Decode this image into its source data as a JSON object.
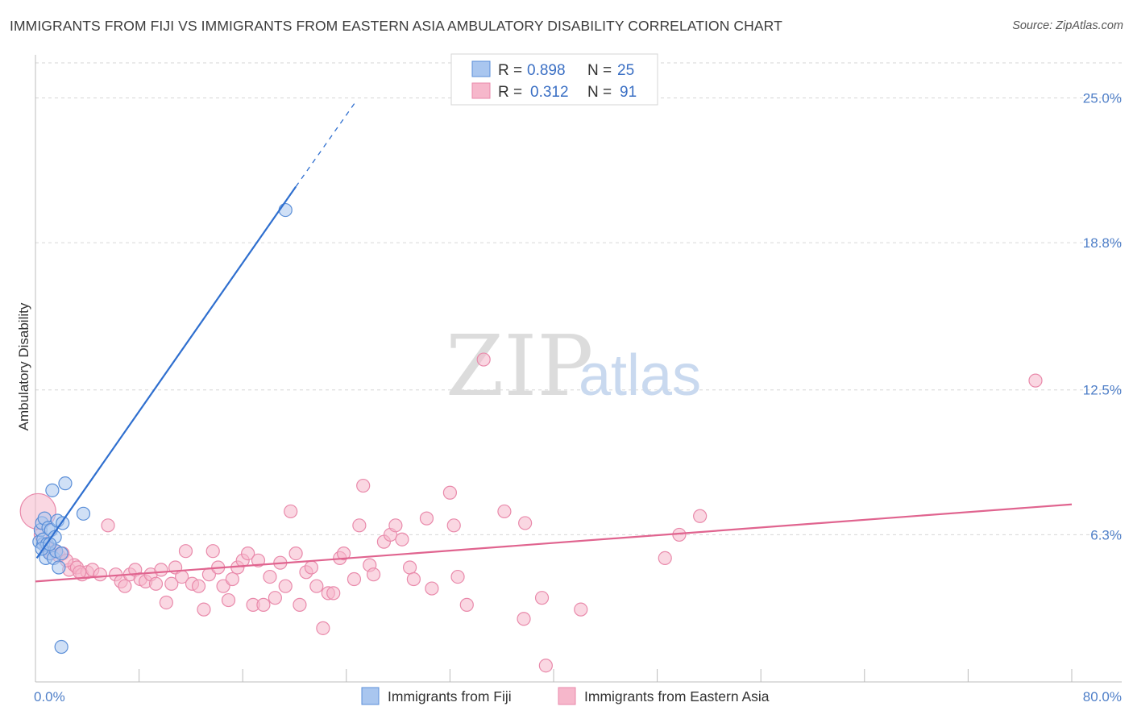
{
  "header": {
    "title": "IMMIGRANTS FROM FIJI VS IMMIGRANTS FROM EASTERN ASIA AMBULATORY DISABILITY CORRELATION CHART",
    "source": "Source: ZipAtlas.com"
  },
  "watermark": {
    "zip": "ZIP",
    "atlas": "atlas"
  },
  "legend": {
    "r_label": "R =",
    "n_label": "N =",
    "rows": [
      {
        "r": "0.898",
        "n": "25"
      },
      {
        "r": "0.312",
        "n": "91"
      }
    ]
  },
  "colors": {
    "fiji_fill": "#a9c6ef",
    "fiji_stroke": "#5b8fd8",
    "fiji_line": "#2f6fcf",
    "asia_fill": "#f6b7cb",
    "asia_stroke": "#e98aab",
    "asia_line": "#e0648f",
    "grid": "#d6d6d6",
    "tick_text": "#4f7fc8"
  },
  "chart_data": {
    "type": "scatter",
    "title": "IMMIGRANTS FROM FIJI VS IMMIGRANTS FROM EASTERN ASIA AMBULATORY DISABILITY CORRELATION CHART",
    "xlabel": "",
    "ylabel": "Ambulatory Disability",
    "xlim": [
      0,
      80
    ],
    "ylim": [
      0,
      26.5
    ],
    "x_tick_labels": [
      "0.0%",
      "80.0%"
    ],
    "y_ticks": [
      6.3,
      12.5,
      18.8,
      25.0
    ],
    "y_tick_labels": [
      "6.3%",
      "12.5%",
      "18.8%",
      "25.0%"
    ],
    "grid": true,
    "legend_position": "top-center",
    "series": [
      {
        "name": "Immigrants from Fiji",
        "r": 0.898,
        "n": 25,
        "trend": {
          "x": [
            0.1,
            20.1
          ],
          "y": [
            5.3,
            21.2
          ],
          "dashed_to": [
            24.8,
            24.9
          ]
        },
        "points": [
          [
            0.3,
            6.0
          ],
          [
            0.4,
            6.5
          ],
          [
            0.5,
            6.8
          ],
          [
            0.6,
            5.9
          ],
          [
            0.6,
            6.1
          ],
          [
            0.7,
            7.0
          ],
          [
            0.8,
            5.3
          ],
          [
            0.9,
            5.9
          ],
          [
            1.0,
            6.6
          ],
          [
            1.1,
            5.5
          ],
          [
            1.2,
            6.5
          ],
          [
            1.3,
            8.2
          ],
          [
            1.4,
            5.3
          ],
          [
            1.5,
            6.2
          ],
          [
            1.6,
            5.6
          ],
          [
            1.7,
            6.9
          ],
          [
            1.8,
            4.9
          ],
          [
            2.0,
            5.5
          ],
          [
            2.1,
            6.8
          ],
          [
            2.3,
            8.5
          ],
          [
            3.7,
            7.2
          ],
          [
            19.3,
            20.2
          ],
          [
            2.0,
            1.5
          ],
          [
            0.5,
            5.7
          ],
          [
            1.1,
            5.9
          ]
        ]
      },
      {
        "name": "Immigrants from Eastern Asia",
        "r": 0.312,
        "n": 91,
        "trend": {
          "x": [
            0,
            80
          ],
          "y": [
            4.3,
            7.6
          ]
        },
        "points": [
          [
            0.2,
            7.3
          ],
          [
            0.4,
            6.3
          ],
          [
            0.8,
            5.9
          ],
          [
            1.2,
            5.5
          ],
          [
            1.5,
            5.6
          ],
          [
            1.8,
            5.4
          ],
          [
            2.1,
            5.5
          ],
          [
            2.6,
            4.8
          ],
          [
            3.0,
            5.0
          ],
          [
            3.2,
            4.9
          ],
          [
            3.6,
            4.6
          ],
          [
            4.0,
            4.7
          ],
          [
            4.4,
            4.8
          ],
          [
            5.0,
            4.6
          ],
          [
            5.6,
            6.7
          ],
          [
            6.2,
            4.6
          ],
          [
            6.6,
            4.3
          ],
          [
            6.9,
            4.1
          ],
          [
            7.3,
            4.6
          ],
          [
            7.7,
            4.8
          ],
          [
            8.1,
            4.4
          ],
          [
            8.5,
            4.3
          ],
          [
            8.9,
            4.6
          ],
          [
            9.3,
            4.2
          ],
          [
            9.7,
            4.8
          ],
          [
            10.1,
            3.4
          ],
          [
            10.5,
            4.2
          ],
          [
            10.8,
            4.9
          ],
          [
            11.3,
            4.5
          ],
          [
            11.6,
            5.6
          ],
          [
            12.1,
            4.2
          ],
          [
            12.6,
            4.1
          ],
          [
            13.0,
            3.1
          ],
          [
            13.4,
            4.6
          ],
          [
            13.7,
            5.6
          ],
          [
            14.1,
            4.9
          ],
          [
            14.5,
            4.1
          ],
          [
            14.9,
            3.5
          ],
          [
            15.2,
            4.4
          ],
          [
            15.6,
            4.9
          ],
          [
            16.0,
            5.2
          ],
          [
            16.4,
            5.5
          ],
          [
            16.8,
            3.3
          ],
          [
            17.2,
            5.2
          ],
          [
            17.6,
            3.3
          ],
          [
            18.1,
            4.5
          ],
          [
            18.5,
            3.6
          ],
          [
            18.9,
            5.1
          ],
          [
            19.3,
            4.1
          ],
          [
            19.7,
            7.3
          ],
          [
            20.1,
            5.5
          ],
          [
            20.4,
            3.3
          ],
          [
            20.9,
            4.7
          ],
          [
            21.3,
            4.9
          ],
          [
            21.7,
            4.1
          ],
          [
            22.2,
            2.3
          ],
          [
            22.6,
            3.8
          ],
          [
            23.0,
            3.8
          ],
          [
            23.5,
            5.3
          ],
          [
            23.8,
            5.5
          ],
          [
            24.6,
            4.4
          ],
          [
            25.0,
            6.7
          ],
          [
            25.3,
            8.4
          ],
          [
            25.8,
            5.0
          ],
          [
            26.1,
            4.6
          ],
          [
            26.9,
            6.0
          ],
          [
            27.4,
            6.3
          ],
          [
            27.8,
            6.7
          ],
          [
            28.3,
            6.1
          ],
          [
            28.9,
            4.9
          ],
          [
            29.2,
            4.4
          ],
          [
            30.2,
            7.0
          ],
          [
            30.6,
            4.0
          ],
          [
            32.0,
            8.1
          ],
          [
            32.3,
            6.7
          ],
          [
            32.6,
            4.5
          ],
          [
            33.3,
            3.3
          ],
          [
            34.6,
            13.8
          ],
          [
            36.2,
            7.3
          ],
          [
            37.7,
            2.7
          ],
          [
            37.8,
            6.8
          ],
          [
            39.1,
            3.6
          ],
          [
            39.4,
            0.7
          ],
          [
            42.1,
            3.1
          ],
          [
            48.6,
            5.3
          ],
          [
            49.7,
            6.3
          ],
          [
            51.3,
            7.1
          ],
          [
            77.2,
            12.9
          ],
          [
            1.0,
            5.7
          ],
          [
            2.4,
            5.2
          ],
          [
            3.4,
            4.7
          ]
        ]
      }
    ]
  },
  "bottom_legend": [
    {
      "label": "Immigrants from Fiji"
    },
    {
      "label": "Immigrants from Eastern Asia"
    }
  ]
}
